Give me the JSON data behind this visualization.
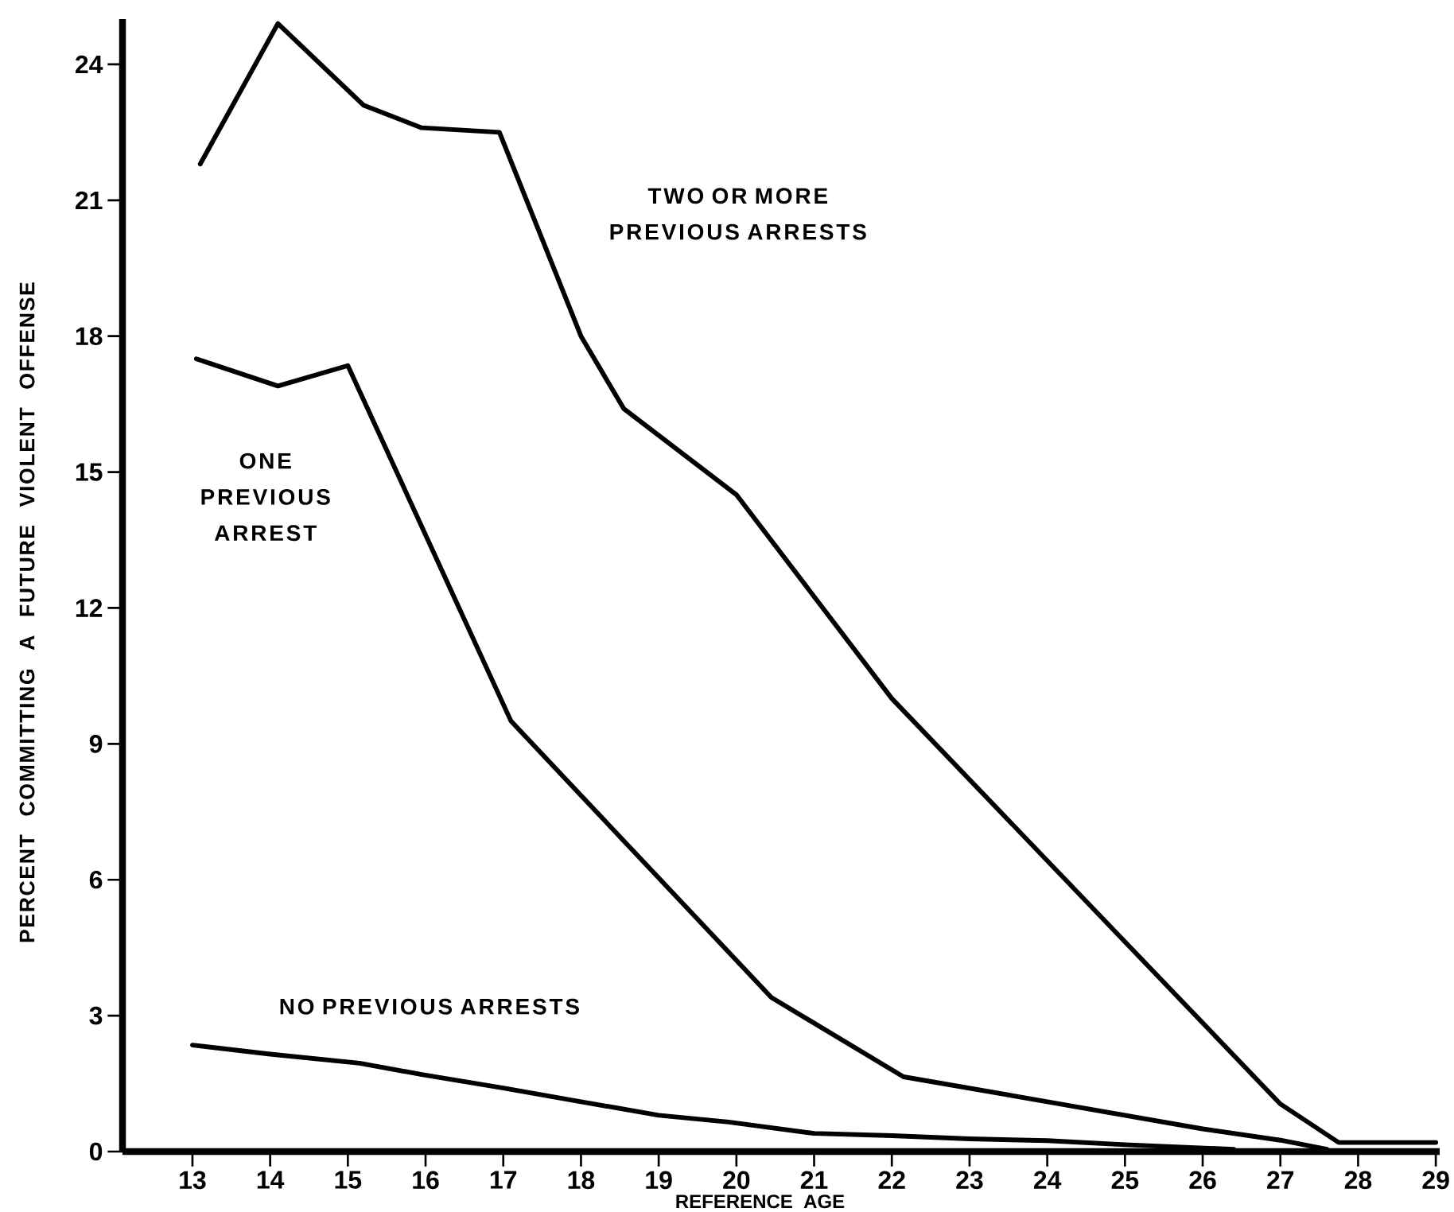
{
  "chart_data": {
    "type": "line",
    "xlabel": "REFERENCE AGE",
    "ylabel": "PERCENT COMMITTING A FUTURE VIOLENT OFFENSE",
    "xlim": [
      12.1,
      29.05
    ],
    "ylim": [
      0,
      25
    ],
    "xticks": [
      13,
      14,
      15,
      16,
      17,
      18,
      19,
      20,
      21,
      22,
      23,
      24,
      25,
      26,
      27,
      28,
      29
    ],
    "yticks": [
      0,
      3,
      6,
      9,
      12,
      15,
      18,
      21,
      24
    ],
    "marker": "none",
    "line_style": "solid",
    "series": [
      {
        "name": "TWO OR MORE PREVIOUS ARRESTS",
        "color": "#000000",
        "x": [
          13.1,
          14.1,
          15.2,
          15.95,
          16.95,
          18.0,
          18.55,
          20.0,
          22.0,
          27.0,
          27.75,
          29.0
        ],
        "values": [
          21.8,
          24.9,
          23.1,
          22.6,
          22.5,
          18.0,
          16.4,
          14.5,
          10.0,
          1.05,
          0.2,
          0.2
        ]
      },
      {
        "name": "ONE PREVIOUS ARREST",
        "color": "#000000",
        "x": [
          13.05,
          14.1,
          15.0,
          17.1,
          20.45,
          22.15,
          24.0,
          26.0,
          27.0,
          27.6
        ],
        "values": [
          17.5,
          16.9,
          17.35,
          9.5,
          3.4,
          1.65,
          1.1,
          0.5,
          0.25,
          0.05
        ]
      },
      {
        "name": "NO PREVIOUS ARRESTS",
        "color": "#000000",
        "x": [
          13.0,
          14.0,
          15.15,
          15.95,
          17.0,
          18.0,
          19.0,
          19.9,
          21.0,
          22.0,
          23.0,
          24.0,
          25.0,
          26.4
        ],
        "values": [
          2.35,
          2.15,
          1.95,
          1.7,
          1.4,
          1.1,
          0.8,
          0.65,
          0.4,
          0.35,
          0.28,
          0.24,
          0.15,
          0.05
        ]
      }
    ]
  }
}
